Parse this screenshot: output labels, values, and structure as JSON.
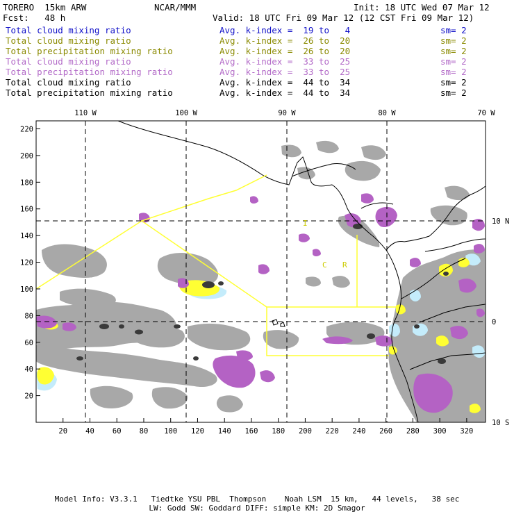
{
  "header": {
    "model_name": "TORERO  15km ARW",
    "org": "NCAR/MMM",
    "init": "Init: 18 UTC Wed 07 Mar 12",
    "fcst": "Fcst:   48 h",
    "valid": "Valid: 18 UTC Fri 09 Mar 12 (12 CST Fri 09 Mar 12)"
  },
  "legend": [
    {
      "field": "Total cloud mixing ratio",
      "kindex": "Avg. k-index =  19 to   4",
      "sm": "sm= 2",
      "color": "#1010c8"
    },
    {
      "field": "Total cloud mixing ratio",
      "kindex": "Avg. k-index =  26 to  20",
      "sm": "sm= 2",
      "color": "#8a8a00"
    },
    {
      "field": "Total precipitation mixing ratio",
      "kindex": "Avg. k-index =  26 to  20",
      "sm": "sm= 2",
      "color": "#8a8a00"
    },
    {
      "field": "Total cloud mixing ratio",
      "kindex": "Avg. k-index =  33 to  25",
      "sm": "sm= 2",
      "color": "#b36bc8"
    },
    {
      "field": "Total precipitation mixing ratio",
      "kindex": "Avg. k-index =  33 to  25",
      "sm": "sm= 2",
      "color": "#b36bc8"
    },
    {
      "field": "Total cloud mixing ratio",
      "kindex": "Avg. k-index =  44 to  34",
      "sm": "sm= 2",
      "color": "#000000"
    },
    {
      "field": "Total precipitation mixing ratio",
      "kindex": "Avg. k-index =  44 to  34",
      "sm": "sm= 2",
      "color": "#000000"
    }
  ],
  "axes": {
    "x_ticks": [
      "20",
      "40",
      "60",
      "80",
      "100",
      "120",
      "140",
      "160",
      "180",
      "200",
      "220",
      "240",
      "260",
      "280",
      "300",
      "320"
    ],
    "y_ticks": [
      "220",
      "200",
      "180",
      "160",
      "140",
      "120",
      "100",
      "80",
      "60",
      "40",
      "20"
    ],
    "lon_labels": [
      "110 W",
      "100 W",
      "90 W",
      "80 W",
      "70 W"
    ],
    "lat_labels": [
      "10 N",
      "0",
      "10 S"
    ]
  },
  "annotations": [
    "I",
    "C",
    "R"
  ],
  "colors": {
    "gray": "#a8a8a8",
    "dark": "#3a3a3a",
    "magenta": "#b462c4",
    "yellow": "#ffff33",
    "cyan": "#c4ecfb",
    "border": "#ffff33"
  },
  "footer": {
    "line1": "Model Info: V3.3.1   Tiedtke YSU PBL  Thompson    Noah LSM  15 km,   44 levels,   38 sec",
    "line2": "LW: Godd SW: Goddard DIFF: simple KM: 2D Smagor"
  }
}
